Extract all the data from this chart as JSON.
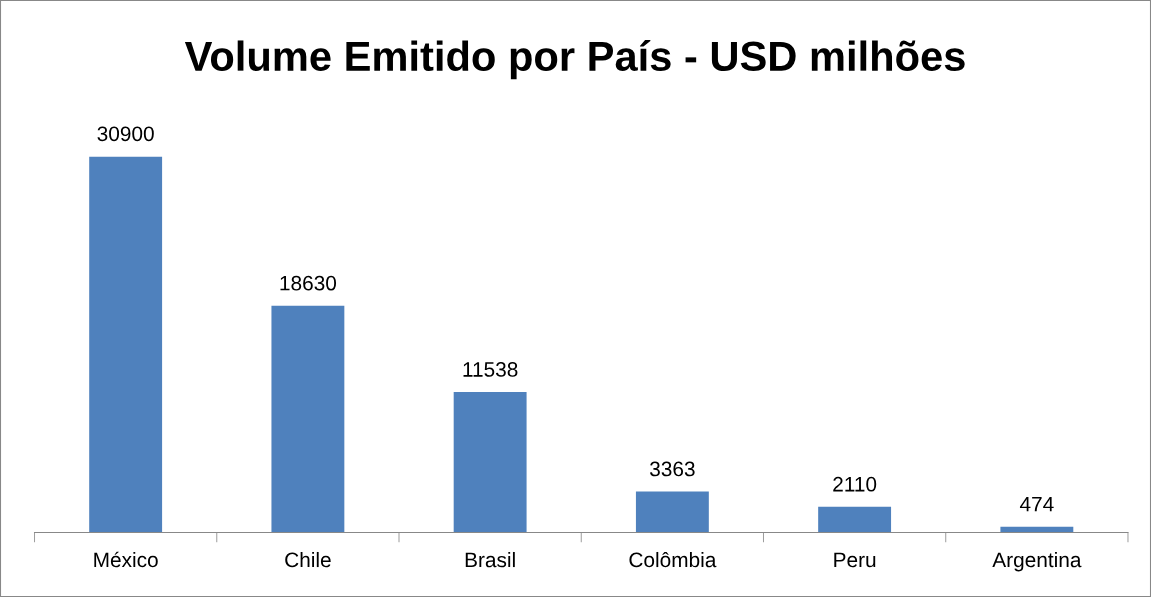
{
  "chart_data": {
    "type": "bar",
    "title": "Volume Emitido por País - USD milhões",
    "categories": [
      "México",
      "Chile",
      "Brasil",
      "Colômbia",
      "Peru",
      "Argentina"
    ],
    "values": [
      30900,
      18630,
      11538,
      3363,
      2110,
      474
    ],
    "color": "#4f81bd",
    "data_labels": true,
    "tick_labels": "x"
  }
}
